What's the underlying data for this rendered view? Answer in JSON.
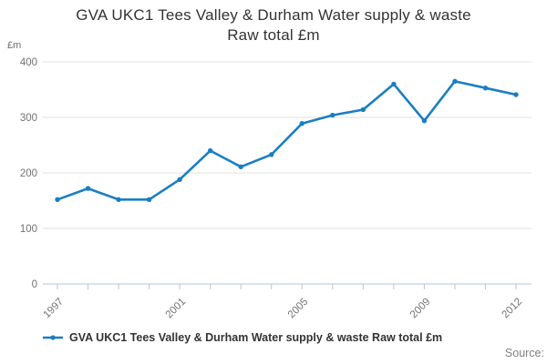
{
  "chart_data": {
    "type": "line",
    "title": "GVA UKC1 Tees Valley & Durham Water supply & waste Raw total £m",
    "title_lines": [
      "GVA UKC1 Tees Valley & Durham Water supply & waste",
      "Raw total £m"
    ],
    "ylabel": "£m",
    "xlabel": "",
    "x": [
      1997,
      1998,
      1999,
      2000,
      2001,
      2002,
      2003,
      2004,
      2005,
      2006,
      2007,
      2008,
      2009,
      2010,
      2011,
      2012
    ],
    "values": [
      152,
      172,
      152,
      152,
      188,
      240,
      211,
      233,
      289,
      304,
      314,
      360,
      294,
      365,
      353,
      341
    ],
    "series": [
      {
        "name": "GVA UKC1 Tees Valley & Durham Water supply & waste Raw total £m",
        "values": [
          152,
          172,
          152,
          152,
          188,
          240,
          211,
          233,
          289,
          304,
          314,
          360,
          294,
          365,
          353,
          341
        ]
      }
    ],
    "ylim": [
      0,
      400
    ],
    "yticks": [
      0,
      100,
      200,
      300,
      400
    ],
    "ytick_labels": [
      "0",
      "100",
      "200",
      "300",
      "400"
    ],
    "xtick_years": [
      1997,
      2001,
      2005,
      2009,
      2012
    ],
    "xtick_labels": [
      "1997",
      "2001",
      "2005",
      "2009",
      "2012"
    ],
    "grid": true,
    "legend_position": "bottom-left",
    "marker": "dot",
    "colors": {
      "line": "#1a7ec2",
      "grid": "#e2e2e2",
      "axis": "#b7c3e0",
      "tick_label": "#737373",
      "title": "#333333",
      "legend_text": "#333333",
      "source_text": "#808080",
      "background": "#ffffff"
    }
  },
  "legend": {
    "label": "GVA UKC1 Tees Valley & Durham Water supply & waste Raw total £m"
  },
  "footer": {
    "source_label": "Source:"
  }
}
